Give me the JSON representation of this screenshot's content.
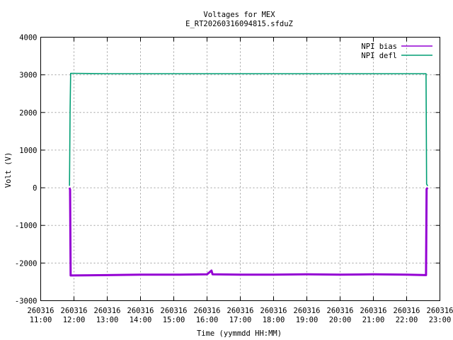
{
  "chart_data": {
    "type": "line",
    "title": "Voltages for MEX",
    "subtitle": "E_RT20260316094815.sfduZ",
    "xlabel": "Time (yymmdd HH:MM)",
    "ylabel": "Volt (V)",
    "xlim": [
      "260316 11:00",
      "260316 23:00"
    ],
    "ylim": [
      -3000,
      4000
    ],
    "grid": true,
    "legend_position": "top-right",
    "x_ticks": [
      {
        "date": "260316",
        "time": "11:00"
      },
      {
        "date": "260316",
        "time": "12:00"
      },
      {
        "date": "260316",
        "time": "13:00"
      },
      {
        "date": "260316",
        "time": "14:00"
      },
      {
        "date": "260316",
        "time": "15:00"
      },
      {
        "date": "260316",
        "time": "16:00"
      },
      {
        "date": "260316",
        "time": "17:00"
      },
      {
        "date": "260316",
        "time": "18:00"
      },
      {
        "date": "260316",
        "time": "19:00"
      },
      {
        "date": "260316",
        "time": "20:00"
      },
      {
        "date": "260316",
        "time": "21:00"
      },
      {
        "date": "260316",
        "time": "22:00"
      },
      {
        "date": "260316",
        "time": "23:00"
      }
    ],
    "y_ticks": [
      "4000",
      "3000",
      "2000",
      "1000",
      "0",
      "-1000",
      "-2000",
      "-3000"
    ],
    "series": [
      {
        "name": "NPI bias",
        "color": "#9400d3",
        "points": [
          {
            "t": "260316 11:52",
            "v": 0
          },
          {
            "t": "260316 11:53",
            "v": -50
          },
          {
            "t": "260316 11:54",
            "v": -2330
          },
          {
            "t": "260316 13:00",
            "v": -2320
          },
          {
            "t": "260316 14:00",
            "v": -2310
          },
          {
            "t": "260316 15:00",
            "v": -2310
          },
          {
            "t": "260316 16:00",
            "v": -2300
          },
          {
            "t": "260316 16:08",
            "v": -2200
          },
          {
            "t": "260316 16:10",
            "v": -2300
          },
          {
            "t": "260316 17:00",
            "v": -2310
          },
          {
            "t": "260316 18:00",
            "v": -2310
          },
          {
            "t": "260316 19:00",
            "v": -2300
          },
          {
            "t": "260316 20:00",
            "v": -2310
          },
          {
            "t": "260316 21:00",
            "v": -2300
          },
          {
            "t": "260316 22:00",
            "v": -2310
          },
          {
            "t": "260316 22:35",
            "v": -2320
          },
          {
            "t": "260316 22:36",
            "v": -30
          },
          {
            "t": "260316 22:38",
            "v": 0
          }
        ]
      },
      {
        "name": "NPI defl",
        "color": "#009e73",
        "points": [
          {
            "t": "260316 11:52",
            "v": 50
          },
          {
            "t": "260316 11:53",
            "v": 2000
          },
          {
            "t": "260316 11:54",
            "v": 3040
          },
          {
            "t": "260316 13:00",
            "v": 3030
          },
          {
            "t": "260316 14:00",
            "v": 3030
          },
          {
            "t": "260316 15:00",
            "v": 3030
          },
          {
            "t": "260316 16:00",
            "v": 3030
          },
          {
            "t": "260316 17:00",
            "v": 3030
          },
          {
            "t": "260316 18:00",
            "v": 3030
          },
          {
            "t": "260316 19:00",
            "v": 3030
          },
          {
            "t": "260316 20:00",
            "v": 3030
          },
          {
            "t": "260316 21:00",
            "v": 3030
          },
          {
            "t": "260316 22:00",
            "v": 3030
          },
          {
            "t": "260316 22:35",
            "v": 3030
          },
          {
            "t": "260316 22:36",
            "v": 100
          },
          {
            "t": "260316 22:38",
            "v": 50
          }
        ]
      }
    ]
  }
}
